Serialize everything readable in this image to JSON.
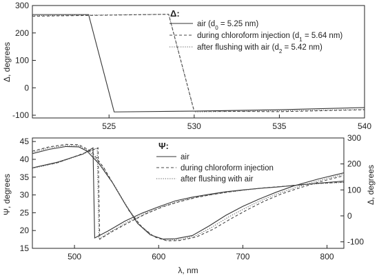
{
  "chart_data": [
    {
      "type": "line",
      "xlabel": "",
      "ylabel": "Δ, degrees",
      "xlim": [
        520.5,
        540
      ],
      "ylim": [
        -110,
        300
      ],
      "xticks": [
        "525",
        "530",
        "535",
        "540"
      ],
      "xtick_values": [
        525,
        530,
        535,
        540
      ],
      "yticks": [
        "-100",
        "0",
        "100",
        "200",
        "300"
      ],
      "ytick_values": [
        -100,
        0,
        100,
        200,
        300
      ],
      "legend_title": "Δ:",
      "legend_position": "top-right",
      "series": [
        {
          "name_base": "air (d",
          "name_sub": "0",
          "name_tail": " = 5.25 nm)",
          "style": "solid",
          "points": [
            [
              520.5,
              267
            ],
            [
              523.8,
              267
            ],
            [
              525.3,
              -88
            ],
            [
              530,
              -85
            ],
            [
              535,
              -80
            ],
            [
              540,
              -72
            ]
          ]
        },
        {
          "name_base": "during chloroform injection (d",
          "name_sub": "1",
          "name_tail": " = 5.64 nm)",
          "style": "dashed",
          "points": [
            [
              520.5,
              261
            ],
            [
              528.5,
              268
            ],
            [
              530,
              -85
            ],
            [
              535,
              -87
            ],
            [
              540,
              -80
            ]
          ]
        },
        {
          "name_base": "after flushing with air (d",
          "name_sub": "2",
          "name_tail": " = 5.42 nm)",
          "style": "dotted",
          "points": [
            [
              520.5,
              263
            ],
            [
              528.5,
              268
            ],
            [
              530,
              -88
            ],
            [
              535,
              -84
            ],
            [
              540,
              -79
            ]
          ]
        }
      ]
    },
    {
      "type": "line",
      "xlabel": "λ, nm",
      "ylabel": "Ψ, degrees",
      "ylabel_right": "Δ, degrees",
      "xlim": [
        450,
        820
      ],
      "ylim": [
        15,
        46
      ],
      "ylim_right": [
        -125,
        300
      ],
      "xticks": [
        "500",
        "600",
        "700",
        "800"
      ],
      "xtick_values": [
        500,
        600,
        700,
        800
      ],
      "yticks": [
        "15",
        "20",
        "25",
        "30",
        "35",
        "40",
        "45"
      ],
      "ytick_values": [
        15,
        20,
        25,
        30,
        35,
        40,
        45
      ],
      "yticks_right": [
        "-100",
        "0",
        "100",
        "200",
        "300"
      ],
      "ytick_values_right": [
        -100,
        0,
        100,
        200,
        300
      ],
      "legend_title": "Ψ:",
      "legend_position": "top-center",
      "series": [
        {
          "name": "air",
          "style": "solid",
          "psi": [
            [
              450,
              41.6
            ],
            [
              470,
              42.8
            ],
            [
              490,
              43.6
            ],
            [
              505,
              43.5
            ],
            [
              515,
              42.3
            ],
            [
              530,
              38.5
            ],
            [
              545,
              33.5
            ],
            [
              560,
              27.5
            ],
            [
              575,
              22
            ],
            [
              590,
              18.8
            ],
            [
              605,
              17.6
            ],
            [
              620,
              17.7
            ],
            [
              640,
              18.6
            ],
            [
              660,
              21.3
            ],
            [
              680,
              24.3
            ],
            [
              700,
              26.8
            ],
            [
              720,
              28.9
            ],
            [
              740,
              30.8
            ],
            [
              760,
              32.5
            ],
            [
              790,
              34.5
            ],
            [
              820,
              36.2
            ]
          ],
          "delta": [
            [
              450,
              185
            ],
            [
              480,
              207
            ],
            [
              510,
              238
            ],
            [
              522,
              262
            ],
            [
              524,
              -85
            ],
            [
              540,
              -58
            ],
            [
              560,
              -20
            ],
            [
              580,
              10
            ],
            [
              600,
              35
            ],
            [
              620,
              58
            ],
            [
              640,
              72
            ],
            [
              660,
              83
            ],
            [
              680,
              93
            ],
            [
              700,
              100
            ],
            [
              720,
              106
            ],
            [
              740,
              111
            ],
            [
              760,
              117
            ],
            [
              790,
              126
            ],
            [
              820,
              134
            ]
          ]
        },
        {
          "name": "during chloroform injection",
          "style": "dashed",
          "psi": [
            [
              450,
              42.3
            ],
            [
              470,
              43.5
            ],
            [
              490,
              44.2
            ],
            [
              505,
              44.1
            ],
            [
              520,
              42.3
            ],
            [
              535,
              37.6
            ],
            [
              550,
              31.5
            ],
            [
              565,
              25.5
            ],
            [
              580,
              21
            ],
            [
              595,
              18.2
            ],
            [
              610,
              17.1
            ],
            [
              625,
              17.2
            ],
            [
              645,
              18.2
            ],
            [
              665,
              20.4
            ],
            [
              685,
              23.2
            ],
            [
              705,
              25.8
            ],
            [
              725,
              28.2
            ],
            [
              745,
              30.2
            ],
            [
              765,
              31.8
            ],
            [
              790,
              33.6
            ],
            [
              820,
              35.4
            ]
          ],
          "delta": [
            [
              450,
              185
            ],
            [
              480,
              205
            ],
            [
              510,
              240
            ],
            [
              528,
              262
            ],
            [
              530,
              -90
            ],
            [
              545,
              -60
            ],
            [
              565,
              -25
            ],
            [
              585,
              8
            ],
            [
              605,
              35
            ],
            [
              625,
              55
            ],
            [
              645,
              71
            ],
            [
              665,
              83
            ],
            [
              685,
              93
            ],
            [
              705,
              101
            ],
            [
              725,
              108
            ],
            [
              745,
              113
            ],
            [
              765,
              119
            ],
            [
              790,
              125
            ],
            [
              820,
              130
            ]
          ]
        },
        {
          "name": "after flushing with air",
          "style": "dotted",
          "psi": [
            [
              450,
              42.0
            ],
            [
              470,
              43.2
            ],
            [
              490,
              43.9
            ],
            [
              505,
              43.8
            ],
            [
              518,
              42.2
            ],
            [
              533,
              38.0
            ],
            [
              548,
              32.5
            ],
            [
              563,
              26.5
            ],
            [
              578,
              21.5
            ],
            [
              593,
              18.5
            ],
            [
              608,
              17.3
            ],
            [
              623,
              17.4
            ],
            [
              643,
              18.4
            ],
            [
              663,
              20.9
            ],
            [
              683,
              23.8
            ],
            [
              703,
              26.3
            ],
            [
              723,
              28.6
            ],
            [
              743,
              30.5
            ],
            [
              763,
              32.1
            ],
            [
              790,
              34.0
            ],
            [
              820,
              35.8
            ]
          ],
          "delta": [
            [
              450,
              183
            ],
            [
              480,
              204
            ],
            [
              510,
              238
            ],
            [
              527,
              261
            ],
            [
              529,
              -88
            ],
            [
              544,
              -59
            ],
            [
              564,
              -22
            ],
            [
              584,
              9
            ],
            [
              604,
              35
            ],
            [
              624,
              56
            ],
            [
              644,
              71
            ],
            [
              664,
              82
            ],
            [
              684,
              92
            ],
            [
              704,
              100
            ],
            [
              724,
              107
            ],
            [
              744,
              112
            ],
            [
              764,
              118
            ],
            [
              790,
              124
            ],
            [
              820,
              129
            ]
          ]
        }
      ]
    }
  ]
}
